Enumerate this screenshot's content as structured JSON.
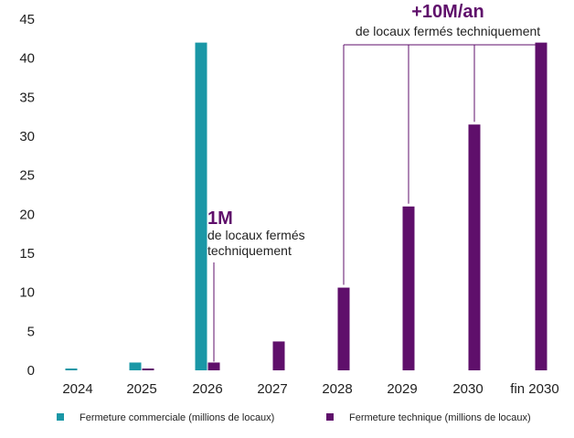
{
  "colors": {
    "commercial": "#1a97a6",
    "technique": "#5f0f6b",
    "callout": "#5f0f6b",
    "connector": "#5f0f6b"
  },
  "chart_data": {
    "type": "bar",
    "categories": [
      "2024",
      "2025",
      "2026",
      "2027",
      "2028",
      "2029",
      "2030",
      "fin 2030"
    ],
    "series": [
      {
        "name": "Fermeture commerciale (millions de locaux)",
        "values": [
          0.1,
          1.0,
          42.0,
          0,
          0,
          0,
          0,
          0
        ]
      },
      {
        "name": "Fermeture technique (millions de locaux)",
        "values": [
          0,
          0.1,
          1.0,
          3.7,
          10.6,
          21.0,
          31.5,
          42.0
        ]
      }
    ],
    "ylim": [
      0,
      45
    ],
    "yticks": [
      "0",
      "5",
      "10",
      "15",
      "20",
      "25",
      "30",
      "35",
      "40",
      "45"
    ],
    "grid": false,
    "legend": "bottom",
    "annotations": {
      "one_m": {
        "value": "1M",
        "line1": "de locaux fermés",
        "line2": "techniquement"
      },
      "ten_m": {
        "value": "+10M/an",
        "line1": "de locaux fermés techniquement"
      }
    }
  }
}
